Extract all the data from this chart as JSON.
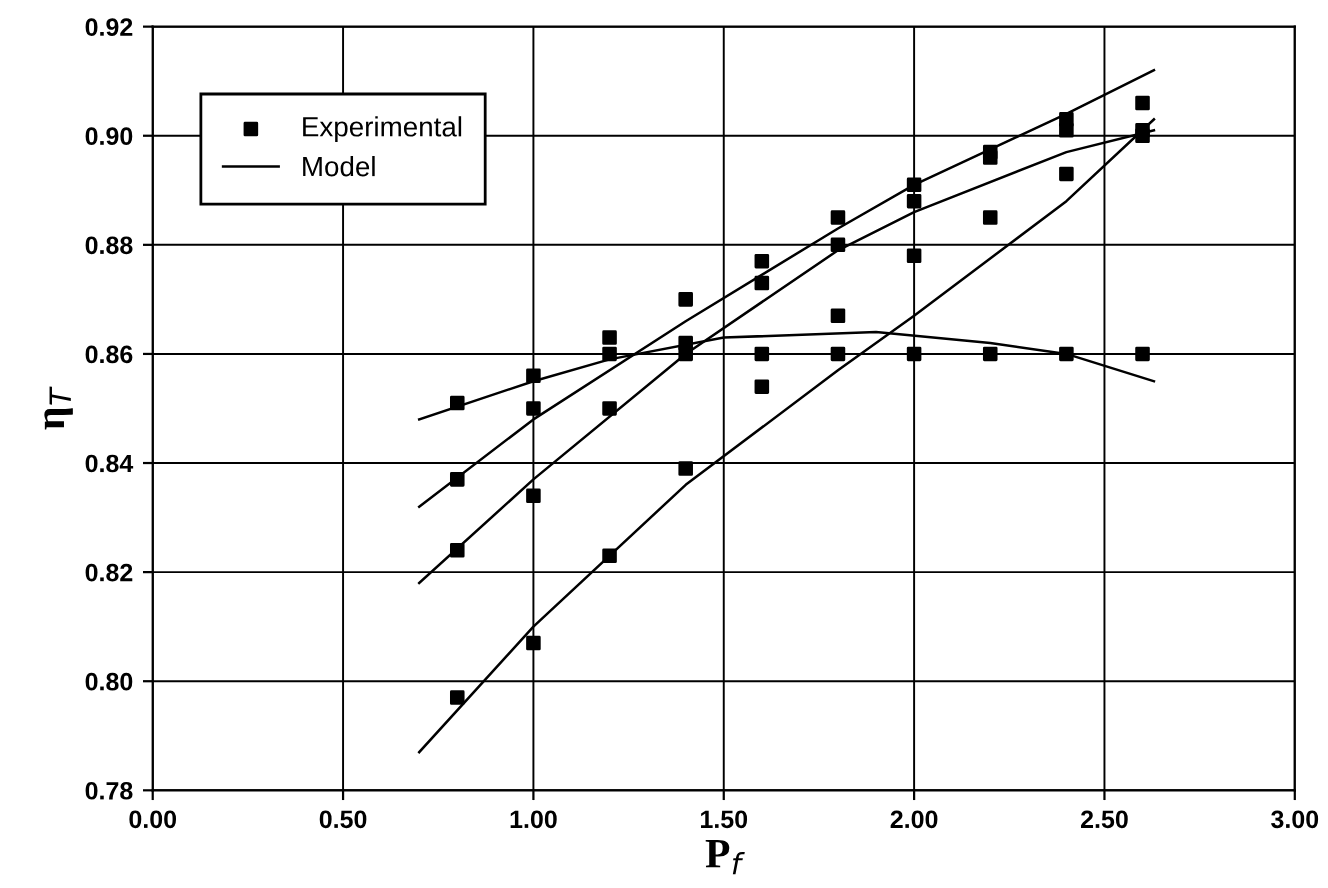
{
  "chart_data": {
    "type": "scatter",
    "xlabel": "P$_{f}$",
    "ylabel": "η$_{T}$",
    "xlim": [
      0,
      3
    ],
    "xticks": [
      {
        "value": 0,
        "label": "0.00"
      },
      {
        "value": 0.5,
        "label": "0.50"
      },
      {
        "value": 1,
        "label": "1.00"
      },
      {
        "value": 1.5,
        "label": "1.50"
      },
      {
        "value": 2,
        "label": "2.00"
      },
      {
        "value": 2.5,
        "label": "2.50"
      },
      {
        "value": 3,
        "label": "3.00"
      }
    ],
    "ylim": [
      0.78,
      0.92
    ],
    "yticks": [
      0.78,
      {
        "value": 0.8,
        "label": "0.80"
      },
      0.82,
      0.84,
      0.86,
      0.88,
      {
        "value": 0.9,
        "label": "0.90"
      },
      0.92
    ],
    "grid": true,
    "legend": "top left",
    "series": [
      {
        "name": "Experimental",
        "marker": "square",
        "color": "#000000",
        "x": [
          0.8,
          0.8,
          0.8,
          0.8,
          1.0,
          1.0,
          1.0,
          1.0,
          1.2,
          1.2,
          1.2,
          1.2,
          1.4,
          1.4,
          1.4,
          1.4,
          1.6,
          1.6,
          1.6,
          1.6,
          1.8,
          1.8,
          1.8,
          1.8,
          2.0,
          2.0,
          2.0,
          2.0,
          2.2,
          2.2,
          2.2,
          2.2,
          2.4,
          2.4,
          2.4,
          2.4,
          2.6,
          2.6,
          2.6,
          2.6
        ],
        "values": [
          0.851,
          0.837,
          0.824,
          0.797,
          0.856,
          0.85,
          0.834,
          0.807,
          0.863,
          0.86,
          0.85,
          0.823,
          0.87,
          0.862,
          0.86,
          0.839,
          0.877,
          0.873,
          0.86,
          0.854,
          0.885,
          0.88,
          0.867,
          0.86,
          0.891,
          0.888,
          0.878,
          0.86,
          0.897,
          0.896,
          0.885,
          0.86,
          0.903,
          0.901,
          0.893,
          0.86,
          0.906,
          0.901,
          0.9,
          0.86
        ]
      },
      {
        "name": "Model",
        "type": "line",
        "color": "#000000",
        "x": [
          0.7,
          1.0,
          1.2,
          1.5,
          1.9,
          2.2,
          2.4,
          2.63
        ],
        "values": [
          0.848,
          0.855,
          0.859,
          0.863,
          0.864,
          0.862,
          0.86,
          0.855
        ]
      },
      {
        "type": "line",
        "color": "#000000",
        "x": [
          0.7,
          1.0,
          1.4,
          1.8,
          2.0,
          2.4,
          2.63
        ],
        "values": [
          0.832,
          0.848,
          0.866,
          0.883,
          0.891,
          0.904,
          0.912
        ]
      },
      {
        "type": "line",
        "color": "#000000",
        "x": [
          0.7,
          1.0,
          1.4,
          1.8,
          2.0,
          2.4,
          2.63
        ],
        "values": [
          0.818,
          0.837,
          0.86,
          0.879,
          0.886,
          0.897,
          0.901
        ]
      },
      {
        "type": "line",
        "color": "#000000",
        "x": [
          0.7,
          1.0,
          1.4,
          1.8,
          2.0,
          2.4,
          2.63
        ],
        "values": [
          0.787,
          0.81,
          0.836,
          0.857,
          0.867,
          0.888,
          0.903
        ]
      }
    ]
  }
}
